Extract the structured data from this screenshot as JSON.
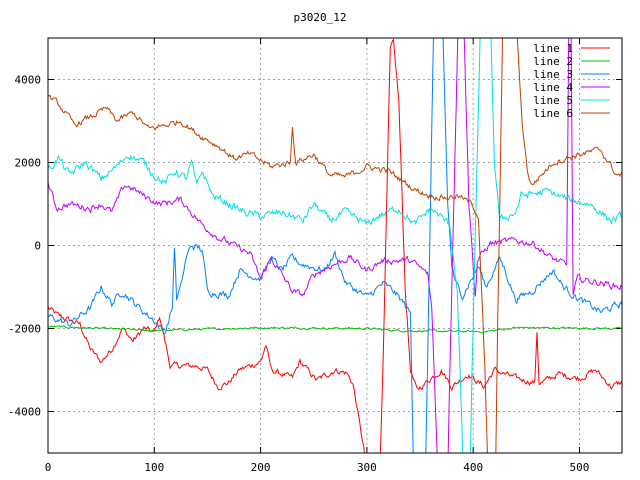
{
  "chart_data": {
    "type": "line",
    "title": "p3020_12",
    "xlabel": "",
    "ylabel": "",
    "xlim": [
      0,
      540
    ],
    "ylim": [
      -5000,
      5000
    ],
    "grid": true,
    "legend_position": "top-right",
    "x_ticks": [
      "0",
      "100",
      "200",
      "300",
      "400",
      "500"
    ],
    "x_tick_values": [
      0,
      100,
      200,
      300,
      400,
      500
    ],
    "y_ticks": [
      "-4000",
      "-2000",
      "0",
      "2000",
      "4000"
    ],
    "y_tick_values": [
      -4000,
      -2000,
      0,
      2000,
      4000
    ],
    "series": [
      {
        "name": "line 1",
        "color": "#ff0000",
        "noise": 120,
        "points": [
          [
            0,
            -1500
          ],
          [
            10,
            -1700
          ],
          [
            30,
            -1900
          ],
          [
            40,
            -2500
          ],
          [
            50,
            -2800
          ],
          [
            60,
            -2500
          ],
          [
            70,
            -2000
          ],
          [
            80,
            -2300
          ],
          [
            90,
            -2000
          ],
          [
            100,
            -2100
          ],
          [
            105,
            -1700
          ],
          [
            110,
            -2300
          ],
          [
            115,
            -2900
          ],
          [
            140,
            -2900
          ],
          [
            150,
            -3000
          ],
          [
            160,
            -3400
          ],
          [
            170,
            -3300
          ],
          [
            180,
            -3000
          ],
          [
            200,
            -2800
          ],
          [
            205,
            -2400
          ],
          [
            210,
            -3000
          ],
          [
            230,
            -3200
          ],
          [
            237,
            -2800
          ],
          [
            253,
            -3250
          ],
          [
            270,
            -3000
          ],
          [
            281,
            -3070
          ],
          [
            287,
            -3340
          ],
          [
            297,
            -4880
          ],
          [
            300,
            -5600
          ],
          [
            312,
            -5600
          ],
          [
            315,
            -3000
          ],
          [
            322,
            4700
          ],
          [
            325,
            4880
          ],
          [
            330,
            3500
          ],
          [
            336,
            -1000
          ],
          [
            341,
            -3000
          ],
          [
            347,
            -3500
          ],
          [
            360,
            -3200
          ],
          [
            370,
            -3000
          ],
          [
            380,
            -3400
          ],
          [
            395,
            -3100
          ],
          [
            410,
            -3400
          ],
          [
            420,
            -3000
          ],
          [
            440,
            -3200
          ],
          [
            458,
            -3300
          ],
          [
            460,
            -2060
          ],
          [
            462,
            -3300
          ],
          [
            465,
            -3300
          ],
          [
            480,
            -3100
          ],
          [
            500,
            -3200
          ],
          [
            515,
            -3000
          ],
          [
            530,
            -3400
          ],
          [
            540,
            -3300
          ]
        ]
      },
      {
        "name": "line 2",
        "color": "#00c000",
        "noise": 40,
        "points": [
          [
            0,
            -1950
          ],
          [
            100,
            -2050
          ],
          [
            200,
            -1980
          ],
          [
            300,
            -2000
          ],
          [
            330,
            -2050
          ],
          [
            410,
            -2080
          ],
          [
            440,
            -1980
          ],
          [
            540,
            -2000
          ]
        ]
      },
      {
        "name": "line 3",
        "color": "#0080ff",
        "noise": 140,
        "points": [
          [
            0,
            -1700
          ],
          [
            20,
            -1900
          ],
          [
            40,
            -1500
          ],
          [
            50,
            -1000
          ],
          [
            60,
            -1400
          ],
          [
            70,
            -1100
          ],
          [
            90,
            -1600
          ],
          [
            100,
            -1800
          ],
          [
            110,
            -2100
          ],
          [
            117,
            -1500
          ],
          [
            119,
            0
          ],
          [
            121,
            -1300
          ],
          [
            125,
            -1000
          ],
          [
            130,
            -300
          ],
          [
            135,
            0
          ],
          [
            145,
            -100
          ],
          [
            150,
            -1100
          ],
          [
            170,
            -1200
          ],
          [
            180,
            -600
          ],
          [
            200,
            -800
          ],
          [
            210,
            -300
          ],
          [
            220,
            -600
          ],
          [
            230,
            -300
          ],
          [
            237,
            -430
          ],
          [
            260,
            -600
          ],
          [
            270,
            -200
          ],
          [
            280,
            -900
          ],
          [
            300,
            -1250
          ],
          [
            315,
            -920
          ],
          [
            325,
            -1100
          ],
          [
            335,
            -1400
          ],
          [
            341,
            -1650
          ],
          [
            344,
            -5600
          ],
          [
            355,
            -5600
          ],
          [
            357,
            -3000
          ],
          [
            363,
            5600
          ],
          [
            371,
            5600
          ],
          [
            376,
            1000
          ],
          [
            380,
            -500
          ],
          [
            383,
            -900
          ],
          [
            390,
            -1200
          ],
          [
            405,
            -500
          ],
          [
            412,
            -1000
          ],
          [
            425,
            -300
          ],
          [
            430,
            -600
          ],
          [
            440,
            -1300
          ],
          [
            455,
            -1100
          ],
          [
            475,
            -600
          ],
          [
            485,
            -1000
          ],
          [
            500,
            -1300
          ],
          [
            520,
            -1600
          ],
          [
            540,
            -1400
          ]
        ]
      },
      {
        "name": "line 4",
        "color": "#c000ff",
        "noise": 130,
        "points": [
          [
            0,
            1500
          ],
          [
            8,
            900
          ],
          [
            20,
            1000
          ],
          [
            40,
            900
          ],
          [
            50,
            1000
          ],
          [
            60,
            800
          ],
          [
            72,
            1450
          ],
          [
            78,
            1400
          ],
          [
            90,
            1200
          ],
          [
            105,
            1000
          ],
          [
            125,
            1100
          ],
          [
            135,
            800
          ],
          [
            145,
            500
          ],
          [
            160,
            200
          ],
          [
            175,
            0
          ],
          [
            190,
            -200
          ],
          [
            200,
            -800
          ],
          [
            210,
            -300
          ],
          [
            230,
            -1100
          ],
          [
            240,
            -1200
          ],
          [
            250,
            -700
          ],
          [
            265,
            -500
          ],
          [
            284,
            -290
          ],
          [
            300,
            -600
          ],
          [
            315,
            -360
          ],
          [
            341,
            -360
          ],
          [
            357,
            -680
          ],
          [
            361,
            -1500
          ],
          [
            367,
            -5600
          ],
          [
            376,
            -5600
          ],
          [
            378,
            -3000
          ],
          [
            386,
            5600
          ],
          [
            391,
            5600
          ],
          [
            396,
            1000
          ],
          [
            402,
            -1200
          ],
          [
            404,
            -360
          ],
          [
            416,
            50
          ],
          [
            441,
            120
          ],
          [
            457,
            50
          ],
          [
            473,
            -290
          ],
          [
            485,
            -440
          ],
          [
            488,
            -500
          ],
          [
            490,
            5600
          ],
          [
            492,
            5600
          ],
          [
            494,
            -1200
          ],
          [
            498,
            -800
          ],
          [
            520,
            -900
          ],
          [
            538,
            -1000
          ],
          [
            540,
            -950
          ]
        ]
      },
      {
        "name": "line 5",
        "color": "#00e0e0",
        "noise": 150,
        "points": [
          [
            0,
            1800
          ],
          [
            10,
            2100
          ],
          [
            20,
            1700
          ],
          [
            35,
            2000
          ],
          [
            50,
            1600
          ],
          [
            65,
            1900
          ],
          [
            75,
            2200
          ],
          [
            90,
            2000
          ],
          [
            100,
            1700
          ],
          [
            110,
            1500
          ],
          [
            120,
            1800
          ],
          [
            130,
            1600
          ],
          [
            135,
            2000
          ],
          [
            140,
            1400
          ],
          [
            145,
            1800
          ],
          [
            155,
            1200
          ],
          [
            170,
            1000
          ],
          [
            185,
            800
          ],
          [
            200,
            700
          ],
          [
            220,
            800
          ],
          [
            240,
            600
          ],
          [
            250,
            1000
          ],
          [
            265,
            600
          ],
          [
            280,
            800
          ],
          [
            300,
            500
          ],
          [
            310,
            700
          ],
          [
            330,
            900
          ],
          [
            345,
            500
          ],
          [
            360,
            900
          ],
          [
            378,
            500
          ],
          [
            385,
            -1100
          ],
          [
            391,
            -5600
          ],
          [
            397,
            -5600
          ],
          [
            399,
            -3000
          ],
          [
            407,
            5600
          ],
          [
            416,
            5600
          ],
          [
            420,
            2000
          ],
          [
            425,
            600
          ],
          [
            440,
            800
          ],
          [
            445,
            1200
          ],
          [
            470,
            1300
          ],
          [
            490,
            1100
          ],
          [
            510,
            1000
          ],
          [
            530,
            600
          ],
          [
            540,
            700
          ]
        ]
      },
      {
        "name": "line 6",
        "color": "#c04000",
        "noise": 120,
        "points": [
          [
            0,
            3600
          ],
          [
            10,
            3400
          ],
          [
            25,
            2900
          ],
          [
            40,
            3100
          ],
          [
            55,
            3300
          ],
          [
            65,
            3000
          ],
          [
            80,
            3200
          ],
          [
            95,
            2800
          ],
          [
            110,
            2900
          ],
          [
            125,
            3000
          ],
          [
            140,
            2700
          ],
          [
            160,
            2400
          ],
          [
            175,
            2100
          ],
          [
            190,
            2200
          ],
          [
            210,
            1900
          ],
          [
            228,
            2000
          ],
          [
            230,
            2900
          ],
          [
            233,
            2000
          ],
          [
            250,
            2200
          ],
          [
            265,
            1700
          ],
          [
            280,
            1650
          ],
          [
            300,
            1900
          ],
          [
            320,
            1800
          ],
          [
            345,
            1350
          ],
          [
            360,
            1200
          ],
          [
            375,
            1150
          ],
          [
            385,
            1200
          ],
          [
            399,
            1000
          ],
          [
            405,
            700
          ],
          [
            411,
            -3000
          ],
          [
            414,
            -5600
          ],
          [
            421,
            -5600
          ],
          [
            423,
            -2000
          ],
          [
            428,
            5600
          ],
          [
            440,
            5600
          ],
          [
            446,
            3000
          ],
          [
            451,
            1800
          ],
          [
            455,
            1450
          ],
          [
            475,
            2000
          ],
          [
            500,
            2200
          ],
          [
            520,
            2300
          ],
          [
            535,
            1700
          ],
          [
            540,
            1700
          ]
        ]
      }
    ]
  }
}
